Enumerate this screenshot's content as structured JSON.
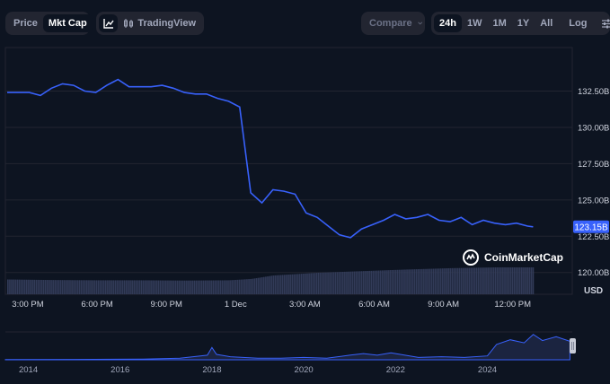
{
  "toolbar": {
    "view_tabs": [
      "Price",
      "Mkt Cap"
    ],
    "active_view": "Mkt Cap",
    "tradingview_label": "TradingView",
    "compare_label": "Compare",
    "ranges": [
      "24h",
      "1W",
      "1M",
      "1Y",
      "All"
    ],
    "active_range": "24h",
    "log_label": "Log"
  },
  "currency_label": "USD",
  "watermark": "CoinMarketCap",
  "colors": {
    "line": "#3861fb",
    "background": "#0d1421",
    "grid": "#222531",
    "volume": "#323b58"
  },
  "chart_data": [
    {
      "type": "line",
      "title": "",
      "x_ticks": [
        "3:00 PM",
        "6:00 PM",
        "9:00 PM",
        "1 Dec",
        "3:00 AM",
        "6:00 AM",
        "9:00 AM",
        "12:00 PM"
      ],
      "y_ticks": [
        "120.00B",
        "122.50B",
        "125.00B",
        "127.50B",
        "130.00B",
        "132.50B"
      ],
      "ylim": [
        118.5,
        135.5
      ],
      "current_value": 123.15,
      "current_label": "123.15B",
      "unit": "USD",
      "grid": true,
      "series": [
        {
          "x": [
            0,
            1,
            1.5,
            2,
            2.5,
            3,
            3.5,
            4,
            4.5,
            5,
            5.5,
            6,
            6.5,
            7,
            7.5,
            8,
            8.5,
            9,
            9.5,
            10,
            10.5,
            11,
            11.5,
            12,
            12.5,
            13,
            13.5,
            14,
            14.5,
            15,
            15.5,
            16,
            16.5,
            17,
            17.5,
            18,
            18.5,
            19,
            19.5,
            20,
            20.5,
            21,
            21.5,
            22,
            22.5,
            23,
            23.5,
            23.75
          ],
          "y": [
            132.4,
            132.4,
            132.2,
            132.7,
            133.0,
            132.9,
            132.5,
            132.4,
            132.9,
            133.3,
            132.8,
            132.8,
            132.8,
            132.9,
            132.7,
            132.4,
            132.3,
            132.3,
            132.0,
            131.8,
            131.4,
            125.5,
            124.8,
            125.7,
            125.6,
            125.4,
            124.1,
            123.8,
            123.2,
            122.6,
            122.4,
            123.0,
            123.3,
            123.6,
            124.0,
            123.7,
            123.8,
            124.0,
            123.6,
            123.5,
            123.8,
            123.3,
            123.6,
            123.4,
            123.3,
            123.4,
            123.2,
            123.15
          ]
        }
      ],
      "volume": {
        "x": [
          0,
          2,
          4,
          6,
          8,
          10,
          11,
          12,
          14,
          16,
          18,
          20,
          22,
          23.75
        ],
        "values": [
          0.55,
          0.53,
          0.52,
          0.52,
          0.51,
          0.52,
          0.57,
          0.7,
          0.8,
          0.86,
          0.92,
          0.97,
          1.0,
          1.0
        ]
      }
    },
    {
      "type": "area",
      "x_ticks": [
        "2014",
        "2016",
        "2018",
        "2020",
        "2022",
        "2024"
      ],
      "series": [
        {
          "x": [
            2013.5,
            2015.0,
            2016.5,
            2017.3,
            2017.9,
            2018.0,
            2018.1,
            2018.4,
            2019.0,
            2019.5,
            2020.0,
            2020.5,
            2021.0,
            2021.3,
            2021.6,
            2021.9,
            2022.0,
            2022.5,
            2023.0,
            2023.5,
            2024.0,
            2024.2,
            2024.5,
            2024.8,
            2025.0,
            2025.2,
            2025.5,
            2025.8
          ],
          "values": [
            0.3,
            0.5,
            0.8,
            2,
            6,
            16,
            7,
            4,
            2,
            2,
            3,
            2,
            6,
            8,
            6,
            9,
            8,
            3,
            4,
            3,
            5,
            20,
            26,
            22,
            33,
            25,
            30,
            24
          ]
        }
      ]
    }
  ]
}
